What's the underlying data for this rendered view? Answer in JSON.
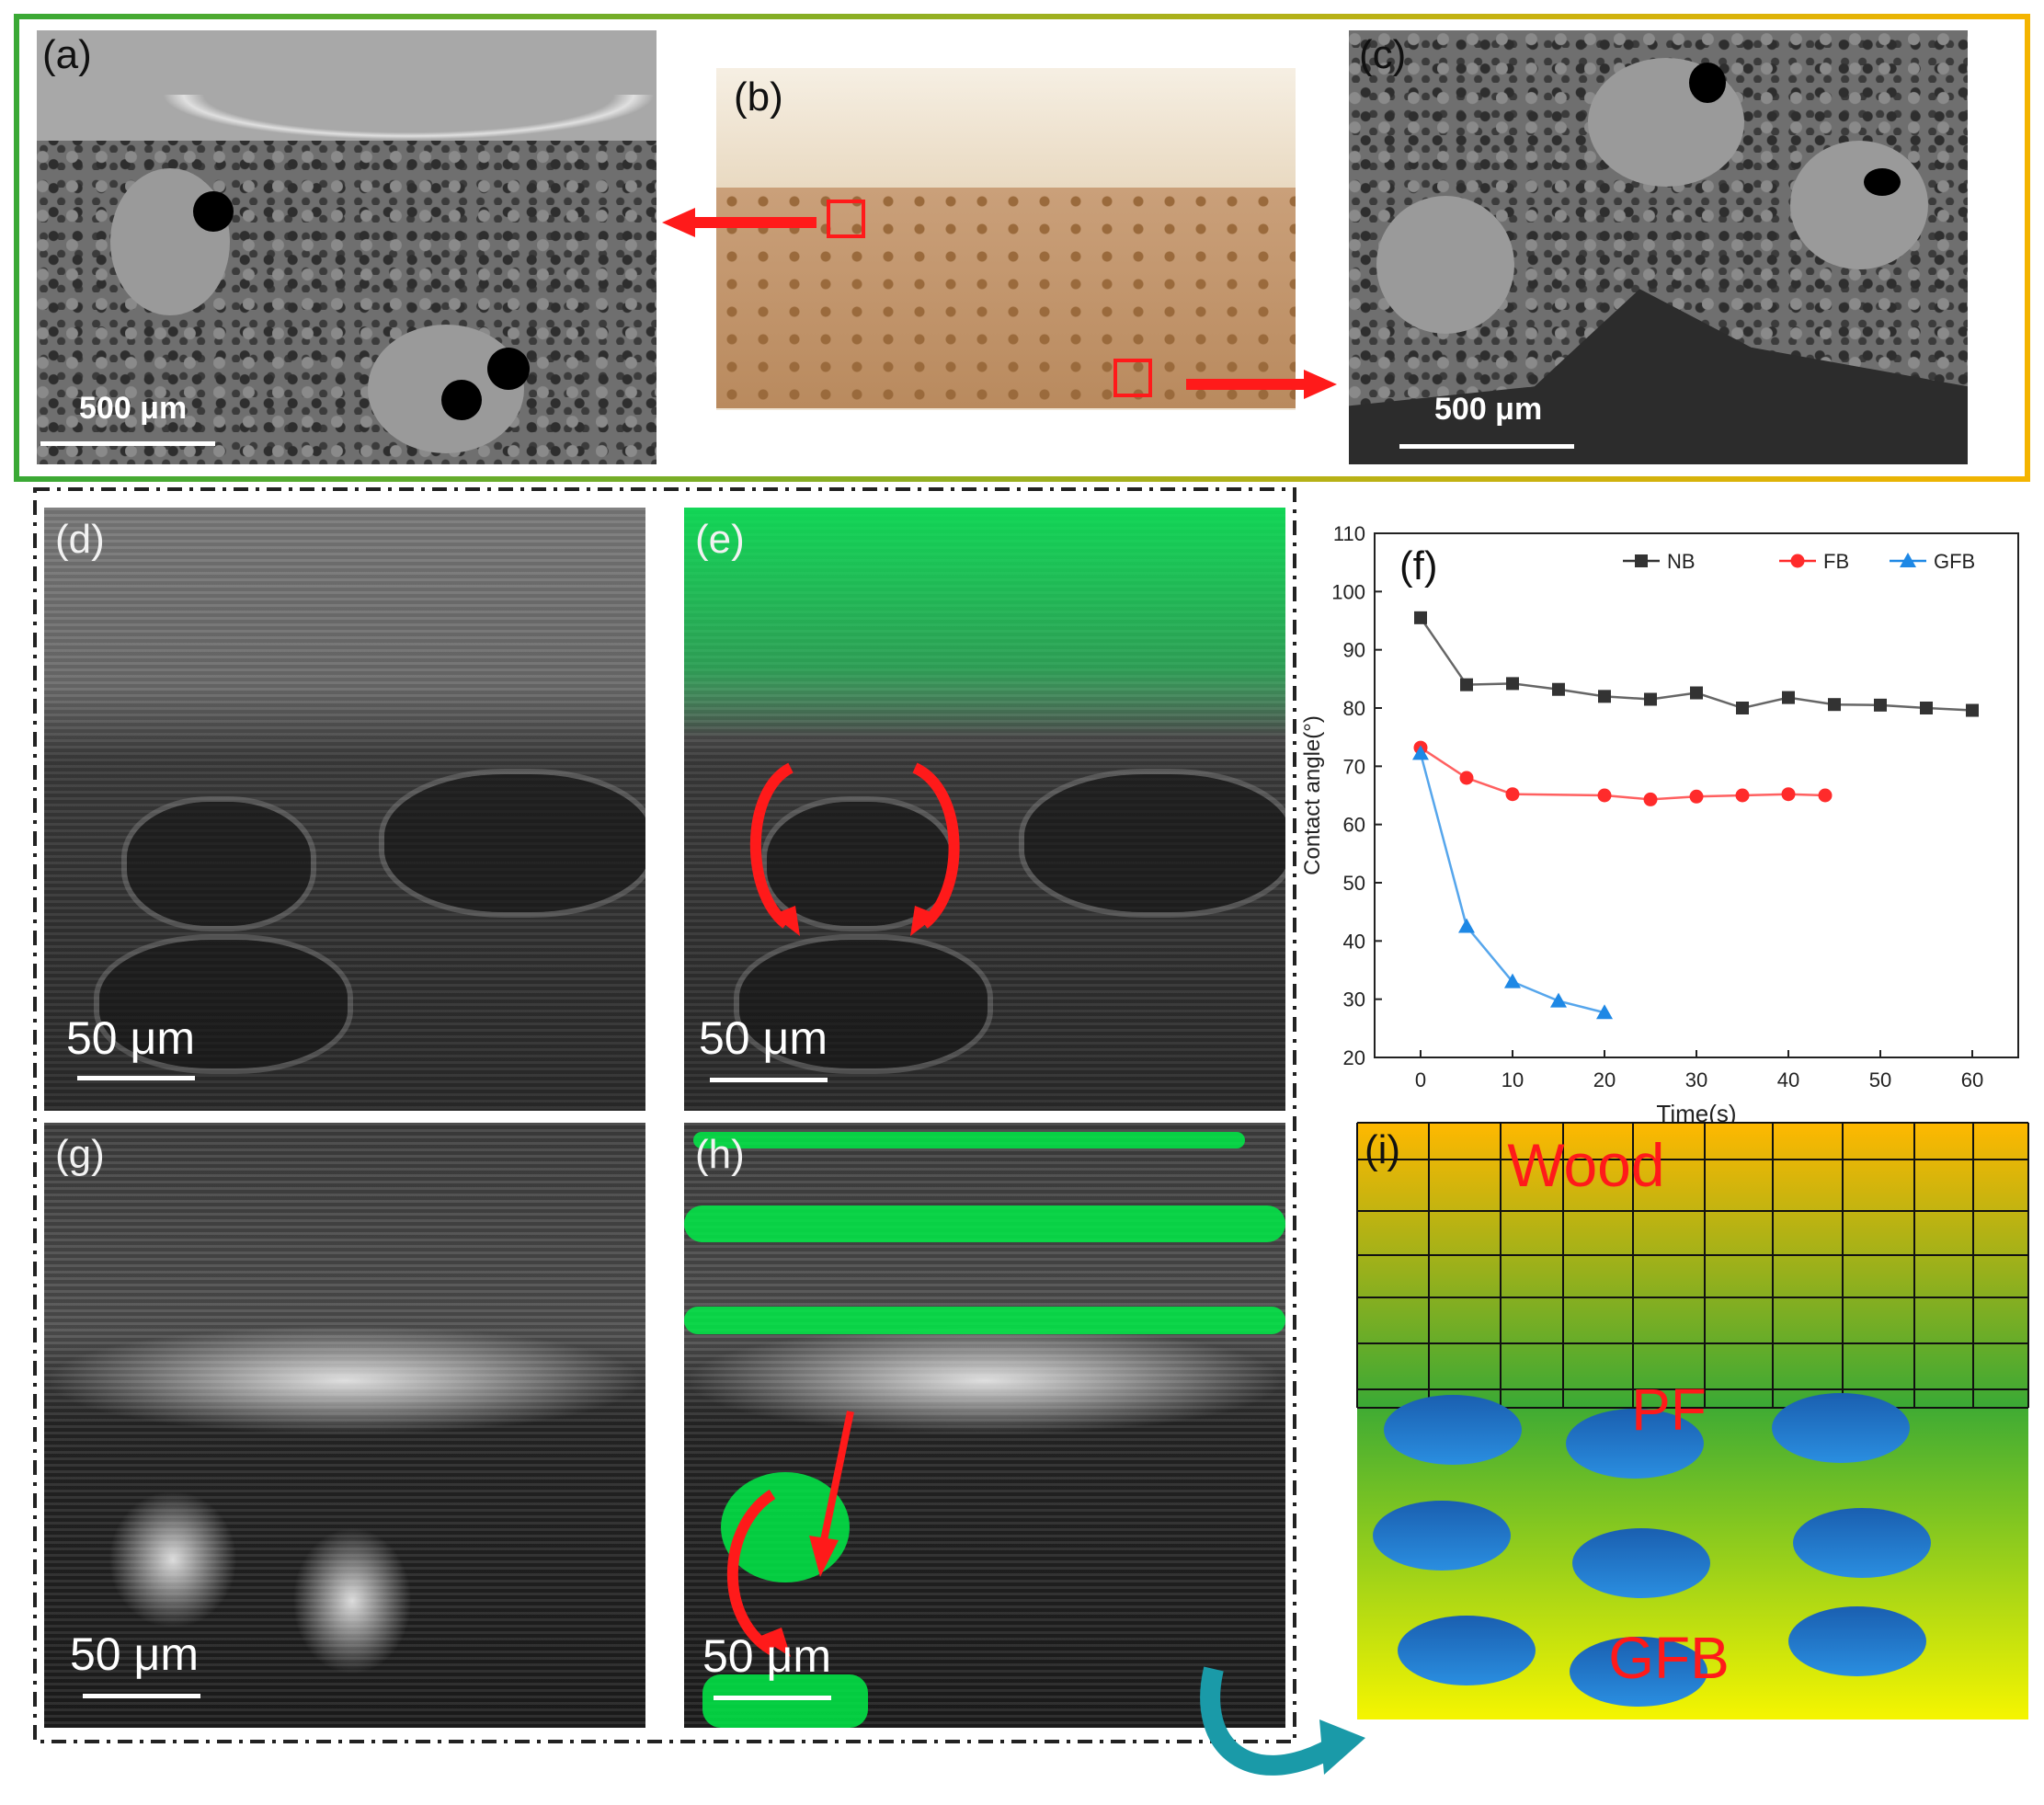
{
  "colors": {
    "frame_green": "#3aa935",
    "frame_orange": "#f4b400",
    "arrow_red": "#ff1a1a",
    "nb": "#333333",
    "fb": "#ff2b2b",
    "gfb": "#1e88e5",
    "curved_arrow_teal": "#1a9aa8"
  },
  "panels": {
    "a": {
      "label": "(a)",
      "scale": "500 μm"
    },
    "b": {
      "label": "(b)"
    },
    "c": {
      "label": "(c)",
      "scale": "500 μm"
    },
    "d": {
      "label": "(d)",
      "scale": "50 μm"
    },
    "e": {
      "label": "(e)",
      "scale": "50 μm"
    },
    "f": {
      "label": "(f)"
    },
    "g": {
      "label": "(g)",
      "scale": "50 μm"
    },
    "h": {
      "label": "(h)",
      "scale": "50 μm"
    },
    "i": {
      "label": "(i)",
      "wood": "Wood",
      "pf": "PF",
      "gfb": "GFB"
    }
  },
  "chart_data": {
    "type": "line",
    "xlabel": "Time(s)",
    "ylabel": "Contact angle(°)",
    "xlim": [
      -5,
      65
    ],
    "ylim": [
      20,
      110
    ],
    "xticks": [
      0,
      10,
      20,
      30,
      40,
      50,
      60
    ],
    "yticks": [
      20,
      30,
      40,
      50,
      60,
      70,
      80,
      90,
      100,
      110
    ],
    "legend_position": "top-right",
    "series": [
      {
        "name": "NB",
        "color": "#333333",
        "marker": "square",
        "x": [
          0,
          5,
          10,
          15,
          20,
          25,
          30,
          35,
          40,
          45,
          50,
          55,
          60
        ],
        "y": [
          95.5,
          84,
          84.2,
          83.2,
          82,
          81.5,
          82.6,
          80,
          81.8,
          80.6,
          80.5,
          80,
          79.6
        ]
      },
      {
        "name": "FB",
        "color": "#ff2b2b",
        "marker": "circle",
        "x": [
          0,
          5,
          10,
          20,
          25,
          30,
          35,
          40,
          44
        ],
        "y": [
          73.2,
          68,
          65.2,
          65,
          64.3,
          64.8,
          65,
          65.2,
          65
        ]
      },
      {
        "name": "GFB",
        "color": "#1e88e5",
        "marker": "triangle",
        "x": [
          0,
          5,
          10,
          15,
          20
        ],
        "y": [
          72.2,
          42.5,
          33,
          29.7,
          27.7
        ]
      }
    ]
  }
}
